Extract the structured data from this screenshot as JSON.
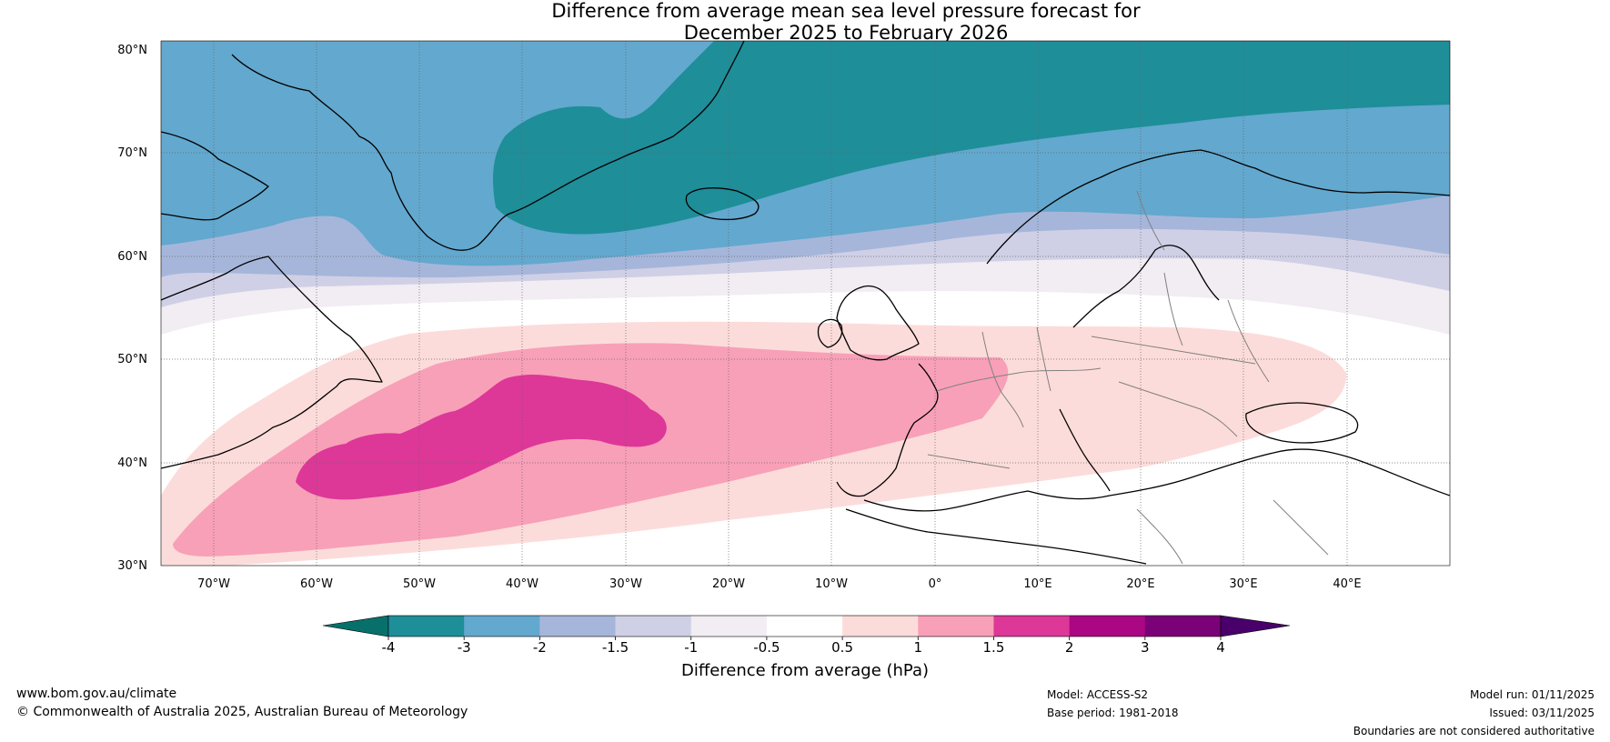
{
  "title": {
    "line1": "Difference from average mean sea level pressure forecast for",
    "line2": "December 2025 to February 2026"
  },
  "map": {
    "lon_min": -75,
    "lon_max": 50,
    "lat_min": 30,
    "lat_max": 80,
    "lat_labels": [
      "80°N",
      "70°N",
      "60°N",
      "50°N",
      "40°N",
      "30°N"
    ],
    "lat_values": [
      80,
      70,
      60,
      50,
      40,
      30
    ],
    "lon_labels": [
      "70°W",
      "60°W",
      "50°W",
      "40°W",
      "30°W",
      "20°W",
      "10°W",
      "0°",
      "10°E",
      "20°E",
      "30°E",
      "40°E"
    ],
    "lon_values": [
      -70,
      -60,
      -50,
      -40,
      -30,
      -20,
      -10,
      0,
      10,
      20,
      30,
      40
    ],
    "contour_fields": [
      {
        "level": "3 to 4 hPa below average",
        "color": "#1e8e99"
      },
      {
        "level": "2 to 3 hPa below average",
        "color": "#63a8ce"
      },
      {
        "level": "1.5 to 2 hPa below average",
        "color": "#a6b6da"
      },
      {
        "level": "1 to 1.5 hPa below average",
        "color": "#cfd0e6"
      },
      {
        "level": "0.5 to 1 hPa below average",
        "color": "#f2ecf3"
      },
      {
        "level": "0.5 to 1 hPa above average",
        "color": "#fcdcda"
      },
      {
        "level": "1 to 1.5 hPa above average",
        "color": "#f8a0b8"
      },
      {
        "level": "1.5 to 2 hPa above average",
        "color": "#dd3798"
      }
    ]
  },
  "colorbar": {
    "label": "Difference from average (hPa)",
    "ticks": [
      "-4",
      "-3",
      "-2",
      "-1.5",
      "-1",
      "-0.5",
      "0.5",
      "1",
      "1.5",
      "2",
      "3",
      "4"
    ],
    "colors": [
      "#1e8e99",
      "#63a8ce",
      "#a6b6da",
      "#cfd0e6",
      "#f2ecf3",
      "#ffffff",
      "#fcdcda",
      "#f8a0b8",
      "#dd3798",
      "#ab0683",
      "#7a0177"
    ],
    "extend_low_color": "#08706a",
    "extend_high_color": "#49006a"
  },
  "footer": {
    "website": "www.bom.gov.au/climate",
    "copyright": "© Commonwealth of Australia 2025, Australian Bureau of Meteorology",
    "model": "Model: ACCESS-S2",
    "base_period": "Base period: 1981-2018",
    "model_run": "Model run: 01/11/2025",
    "issued": "Issued: 03/11/2025",
    "boundaries_note": "Boundaries are not considered authoritative"
  }
}
